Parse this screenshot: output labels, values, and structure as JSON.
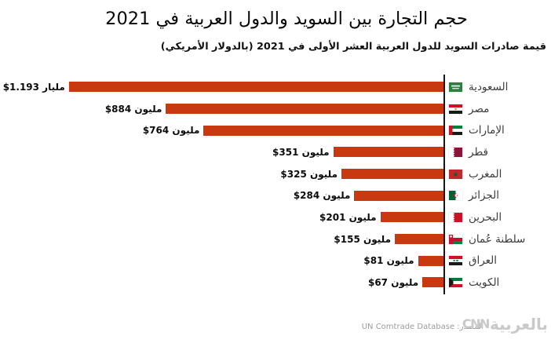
{
  "title": "حجم التجارة بين السويد والدول العربية في 2021",
  "subtitle": "قيمة صادرات السويد للدول العربية العشر الأولى في 2021 (بالدولار الأمريكي)",
  "chart_data": {
    "type": "bar",
    "orientation": "horizontal-rtl",
    "title": "حجم التجارة بين السويد والدول العربية في 2021",
    "subtitle": "قيمة صادرات السويد للدول العربية العشر الأولى في 2021 (بالدولار الأمريكي)",
    "unit": "مليون دولار أمريكي",
    "categories": [
      "السعودية",
      "مصر",
      "الإمارات",
      "قطر",
      "المغرب",
      "الجزائر",
      "البحرين",
      "سلطنة عُمان",
      "العراق",
      "الكويت"
    ],
    "values": [
      1193,
      884,
      764,
      351,
      325,
      284,
      201,
      155,
      81,
      67
    ],
    "value_labels": [
      "$1.193 مليار",
      "$884 مليون",
      "$764 مليون",
      "$351 مليون",
      "$325 مليون",
      "$284 مليون",
      "$201 مليون",
      "$155 مليون",
      "$81 مليون",
      "$67 مليون"
    ],
    "bar_color": "#C8390F",
    "axis_color": "#161616",
    "legend": "none",
    "grid": "off",
    "xlim": [
      0,
      1200
    ]
  },
  "rows": [
    {
      "country": "السعودية",
      "flag": "saudi-arabia",
      "value_label": "$1.193 مليار",
      "value_musd": 1193
    },
    {
      "country": "مصر",
      "flag": "egypt",
      "value_label": "$884 مليون",
      "value_musd": 884
    },
    {
      "country": "الإمارات",
      "flag": "uae",
      "value_label": "$764 مليون",
      "value_musd": 764
    },
    {
      "country": "قطر",
      "flag": "qatar",
      "value_label": "$351 مليون",
      "value_musd": 351
    },
    {
      "country": "المغرب",
      "flag": "morocco",
      "value_label": "$325 مليون",
      "value_musd": 325
    },
    {
      "country": "الجزائر",
      "flag": "algeria",
      "value_label": "$284 مليون",
      "value_musd": 284
    },
    {
      "country": "البحرين",
      "flag": "bahrain",
      "value_label": "$201 مليون",
      "value_musd": 201
    },
    {
      "country": "سلطنة عُمان",
      "flag": "oman",
      "value_label": "$155 مليون",
      "value_musd": 155
    },
    {
      "country": "العراق",
      "flag": "iraq",
      "value_label": "$81 مليون",
      "value_musd": 81
    },
    {
      "country": "الكويت",
      "flag": "kuwait",
      "value_label": "$67 مليون",
      "value_musd": 67
    }
  ],
  "source": {
    "label": "المصدر: UN Comtrade Database"
  },
  "logo": {
    "arabic": "بالعربية",
    "cnn": "CNN"
  },
  "colors": {
    "bar": "#C8390F",
    "axis": "#161616",
    "country_label": "#3c3c3c",
    "source": "#9b9b9b",
    "logo": "#c9c9c9",
    "background": "#ffffff"
  }
}
